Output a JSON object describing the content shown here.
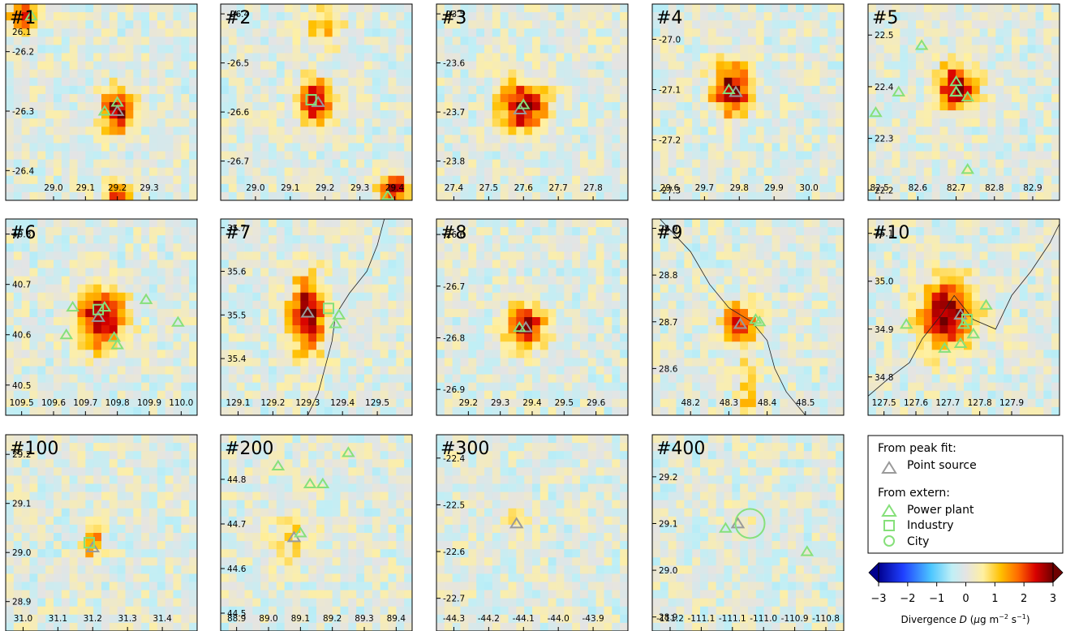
{
  "colors": {
    "point_source": "#9a9a9a",
    "power_plant": "#86e07a",
    "industry": "#86e07a",
    "city": "#86e07a",
    "background": "#e4e4e4",
    "coastline": "#222222"
  },
  "legend": {
    "peak_header": "From peak fit:",
    "point_source_label": "Point source",
    "extern_header": "From extern:",
    "power_plant_label": "Power plant",
    "industry_label": "Industry",
    "city_label": "City"
  },
  "colorbar": {
    "label": "Divergence D (μg m⁻² s⁻¹)",
    "label_prefix": "Divergence ",
    "label_symbol": "D",
    "label_units_open": " (",
    "label_mu": "μ",
    "label_g": "g m",
    "label_exp1": "−2",
    "label_s": " s",
    "label_exp2": "−1",
    "label_close": ")",
    "min": -3,
    "max": 3,
    "ticks": [
      "−3",
      "−2",
      "−1",
      "0",
      "1",
      "2",
      "3"
    ],
    "tick_values": [
      -3,
      -2,
      -1,
      0,
      1,
      2,
      3
    ]
  },
  "chart_data": [
    {
      "type": "heatmap",
      "title": "#1",
      "xlim": [
        28.85,
        29.45
      ],
      "ylim": [
        -26.45,
        -26.12
      ],
      "xticks": [
        "29.0",
        "29.1",
        "29.2",
        "29.3"
      ],
      "yticks": [
        "-26.2",
        "-26.3",
        "-26.4"
      ],
      "ytop": "26.1",
      "hotspots": [
        {
          "x": 29.2,
          "y": -26.3,
          "amp": 3.0,
          "sx": 0.035,
          "sy": 0.025
        },
        {
          "x": 28.9,
          "y": -26.14,
          "amp": 2.2,
          "sx": 0.03,
          "sy": 0.02
        },
        {
          "x": 29.2,
          "y": -26.45,
          "amp": 2.5,
          "sx": 0.03,
          "sy": 0.02
        }
      ],
      "markers": [
        {
          "kind": "point",
          "x": 29.2,
          "y": -26.3
        },
        {
          "kind": "plant",
          "x": 29.16,
          "y": -26.3
        },
        {
          "kind": "plant",
          "x": 29.2,
          "y": -26.285
        },
        {
          "kind": "plant",
          "x": 28.93,
          "y": -26.14
        }
      ]
    },
    {
      "type": "heatmap",
      "title": "#2",
      "xlim": [
        28.9,
        29.45
      ],
      "ylim": [
        -26.78,
        -26.38
      ],
      "xticks": [
        "29.0",
        "29.1",
        "29.2",
        "29.3",
        "29.4"
      ],
      "yticks": [
        "-26.4",
        "-26.5",
        "-26.6",
        "-26.7"
      ],
      "hotspots": [
        {
          "x": 29.17,
          "y": -26.58,
          "amp": 3.0,
          "sx": 0.035,
          "sy": 0.03
        },
        {
          "x": 29.4,
          "y": -26.76,
          "amp": 2.5,
          "sx": 0.03,
          "sy": 0.025
        },
        {
          "x": 29.2,
          "y": -26.42,
          "amp": 1.3,
          "sx": 0.04,
          "sy": 0.03
        }
      ],
      "markers": [
        {
          "kind": "point",
          "x": 29.18,
          "y": -26.58
        },
        {
          "kind": "industry",
          "x": 29.16,
          "y": -26.575
        },
        {
          "kind": "plant",
          "x": 29.38,
          "y": -26.77
        }
      ]
    },
    {
      "type": "heatmap",
      "title": "#3",
      "xlim": [
        27.35,
        27.9
      ],
      "ylim": [
        -23.88,
        -23.48
      ],
      "xticks": [
        "27.4",
        "27.5",
        "27.6",
        "27.7",
        "27.8"
      ],
      "yticks": [
        "-23.5",
        "-23.6",
        "-23.7",
        "-23.8"
      ],
      "hotspots": [
        {
          "x": 27.6,
          "y": -23.69,
          "amp": 3.0,
          "sx": 0.045,
          "sy": 0.035
        }
      ],
      "markers": [
        {
          "kind": "point",
          "x": 27.59,
          "y": -23.695
        },
        {
          "kind": "plant",
          "x": 27.6,
          "y": -23.685
        }
      ]
    },
    {
      "type": "heatmap",
      "title": "#4",
      "xlim": [
        29.55,
        30.1
      ],
      "ylim": [
        -27.32,
        -26.93
      ],
      "xticks": [
        "29.6",
        "29.7",
        "29.8",
        "29.9",
        "30.0"
      ],
      "yticks": [
        "-27.0",
        "-27.1",
        "-27.2",
        "-27.3"
      ],
      "hotspots": [
        {
          "x": 29.78,
          "y": -27.1,
          "amp": 3.0,
          "sx": 0.04,
          "sy": 0.035
        }
      ],
      "markers": [
        {
          "kind": "point",
          "x": 29.79,
          "y": -27.105
        },
        {
          "kind": "plant",
          "x": 29.77,
          "y": -27.1
        }
      ]
    },
    {
      "type": "heatmap",
      "title": "#5",
      "xlim": [
        82.47,
        82.97
      ],
      "ylim": [
        22.18,
        22.56
      ],
      "xticks": [
        "82.5",
        "82.6",
        "82.7",
        "82.8",
        "82.9"
      ],
      "yticks": [
        "22.5",
        "22.4",
        "22.3",
        "22.2"
      ],
      "hotspots": [
        {
          "x": 82.7,
          "y": 22.4,
          "amp": 3.0,
          "sx": 0.035,
          "sy": 0.03
        }
      ],
      "markers": [
        {
          "kind": "point",
          "x": 82.7,
          "y": 22.39
        },
        {
          "kind": "plant",
          "x": 82.61,
          "y": 22.48
        },
        {
          "kind": "plant",
          "x": 82.7,
          "y": 22.41
        },
        {
          "kind": "plant",
          "x": 82.7,
          "y": 22.39
        },
        {
          "kind": "plant",
          "x": 82.73,
          "y": 22.38
        },
        {
          "kind": "plant",
          "x": 82.55,
          "y": 22.39
        },
        {
          "kind": "plant",
          "x": 82.49,
          "y": 22.35
        },
        {
          "kind": "plant",
          "x": 82.73,
          "y": 22.24
        }
      ]
    },
    {
      "type": "heatmap",
      "title": "#6",
      "xlim": [
        109.45,
        110.05
      ],
      "ylim": [
        40.44,
        40.83
      ],
      "xticks": [
        "109.5",
        "109.6",
        "109.7",
        "109.8",
        "109.9",
        "110.0"
      ],
      "yticks": [
        "40.8",
        "40.7",
        "40.6",
        "40.5"
      ],
      "hotspots": [
        {
          "x": 109.75,
          "y": 40.63,
          "amp": 3.0,
          "sx": 0.05,
          "sy": 0.04
        }
      ],
      "markers": [
        {
          "kind": "point",
          "x": 109.74,
          "y": 40.635
        },
        {
          "kind": "industry",
          "x": 109.74,
          "y": 40.65
        },
        {
          "kind": "plant",
          "x": 109.76,
          "y": 40.655
        },
        {
          "kind": "plant",
          "x": 109.66,
          "y": 40.655
        },
        {
          "kind": "plant",
          "x": 109.64,
          "y": 40.6
        },
        {
          "kind": "plant",
          "x": 109.79,
          "y": 40.595
        },
        {
          "kind": "plant",
          "x": 109.8,
          "y": 40.58
        },
        {
          "kind": "plant",
          "x": 109.89,
          "y": 40.67
        },
        {
          "kind": "plant",
          "x": 109.99,
          "y": 40.625
        }
      ]
    },
    {
      "type": "heatmap",
      "title": "#7",
      "xlim": [
        129.05,
        129.6
      ],
      "ylim": [
        35.27,
        35.72
      ],
      "xticks": [
        "129.1",
        "129.2",
        "129.3",
        "129.4",
        "129.5"
      ],
      "yticks": [
        "35.7",
        "35.6",
        "35.5",
        "35.4"
      ],
      "hotspots": [
        {
          "x": 129.3,
          "y": 35.5,
          "amp": 3.0,
          "sx": 0.035,
          "sy": 0.06
        }
      ],
      "markers": [
        {
          "kind": "point",
          "x": 129.3,
          "y": 35.505
        },
        {
          "kind": "industry",
          "x": 129.36,
          "y": 35.515
        },
        {
          "kind": "plant",
          "x": 129.38,
          "y": 35.48
        },
        {
          "kind": "plant",
          "x": 129.39,
          "y": 35.5
        }
      ],
      "coast": [
        [
          129.52,
          35.72
        ],
        [
          129.5,
          35.66
        ],
        [
          129.47,
          35.6
        ],
        [
          129.42,
          35.55
        ],
        [
          129.38,
          35.5
        ],
        [
          129.37,
          35.44
        ],
        [
          129.35,
          35.38
        ],
        [
          129.33,
          35.32
        ],
        [
          129.3,
          35.27
        ]
      ]
    },
    {
      "type": "heatmap",
      "title": "#8",
      "xlim": [
        29.1,
        29.7
      ],
      "ylim": [
        -26.95,
        -26.57
      ],
      "xticks": [
        "29.2",
        "29.3",
        "29.4",
        "29.5",
        "29.6"
      ],
      "yticks": [
        "-26.6",
        "-26.7",
        "-26.8",
        "-26.9"
      ],
      "hotspots": [
        {
          "x": 29.38,
          "y": -26.78,
          "amp": 3.0,
          "sx": 0.04,
          "sy": 0.03
        }
      ],
      "markers": [
        {
          "kind": "point",
          "x": 29.38,
          "y": -26.78
        },
        {
          "kind": "plant",
          "x": 29.36,
          "y": -26.78
        }
      ]
    },
    {
      "type": "heatmap",
      "title": "#9",
      "xlim": [
        48.1,
        48.6
      ],
      "ylim": [
        28.5,
        28.92
      ],
      "xticks": [
        "48.2",
        "48.3",
        "48.4",
        "48.5"
      ],
      "yticks": [
        "28.9",
        "28.8",
        "28.7",
        "28.6"
      ],
      "hotspots": [
        {
          "x": 48.33,
          "y": 28.7,
          "amp": 2.4,
          "sx": 0.03,
          "sy": 0.03
        },
        {
          "x": 48.35,
          "y": 28.55,
          "amp": 1.2,
          "sx": 0.02,
          "sy": 0.05
        }
      ],
      "markers": [
        {
          "kind": "point",
          "x": 48.33,
          "y": 28.695
        },
        {
          "kind": "plant",
          "x": 48.37,
          "y": 28.705
        },
        {
          "kind": "plant",
          "x": 48.38,
          "y": 28.7
        }
      ],
      "coast": [
        [
          48.12,
          28.92
        ],
        [
          48.2,
          28.85
        ],
        [
          48.25,
          28.78
        ],
        [
          48.3,
          28.73
        ],
        [
          48.36,
          28.7
        ],
        [
          48.4,
          28.66
        ],
        [
          48.42,
          28.6
        ],
        [
          48.45,
          28.55
        ],
        [
          48.5,
          28.5
        ]
      ]
    },
    {
      "type": "heatmap",
      "title": "#10",
      "xlim": [
        127.45,
        128.05
      ],
      "ylim": [
        34.72,
        35.13
      ],
      "xticks": [
        "127.5",
        "127.6",
        "127.7",
        "127.8",
        "127.9"
      ],
      "yticks": [
        "35.1",
        "35.0",
        "34.9",
        "34.8"
      ],
      "hotspots": [
        {
          "x": 127.7,
          "y": 34.93,
          "amp": 3.0,
          "sx": 0.06,
          "sy": 0.05
        }
      ],
      "markers": [
        {
          "kind": "point",
          "x": 127.74,
          "y": 34.93
        },
        {
          "kind": "industry",
          "x": 127.76,
          "y": 34.92
        },
        {
          "kind": "plant",
          "x": 127.75,
          "y": 34.91
        },
        {
          "kind": "plant",
          "x": 127.78,
          "y": 34.89
        },
        {
          "kind": "plant",
          "x": 127.82,
          "y": 34.95
        },
        {
          "kind": "plant",
          "x": 127.57,
          "y": 34.91
        },
        {
          "kind": "plant",
          "x": 127.69,
          "y": 34.86
        },
        {
          "kind": "plant",
          "x": 127.74,
          "y": 34.87
        }
      ],
      "coast": [
        [
          127.45,
          34.76
        ],
        [
          127.52,
          34.8
        ],
        [
          127.58,
          34.83
        ],
        [
          127.62,
          34.88
        ],
        [
          127.68,
          34.93
        ],
        [
          127.72,
          34.97
        ],
        [
          127.78,
          34.92
        ],
        [
          127.85,
          34.9
        ],
        [
          127.9,
          34.97
        ],
        [
          127.96,
          35.02
        ],
        [
          128.02,
          35.08
        ],
        [
          128.05,
          35.12
        ]
      ]
    },
    {
      "type": "heatmap",
      "title": "#100",
      "xlim": [
        30.95,
        31.5
      ],
      "ylim": [
        28.84,
        29.24
      ],
      "xticks": [
        "31.0",
        "31.1",
        "31.2",
        "31.3",
        "31.4"
      ],
      "yticks": [
        "29.2",
        "29.1",
        "29.0",
        "28.9"
      ],
      "hotspots": [
        {
          "x": 31.2,
          "y": 29.02,
          "amp": 2.0,
          "sx": 0.02,
          "sy": 0.02
        }
      ],
      "markers": [
        {
          "kind": "point",
          "x": 31.2,
          "y": 29.01
        },
        {
          "kind": "industry",
          "x": 31.19,
          "y": 29.02
        }
      ]
    },
    {
      "type": "heatmap",
      "title": "#200",
      "xlim": [
        88.85,
        89.45
      ],
      "ylim": [
        44.46,
        44.9
      ],
      "xticks": [
        "88.9",
        "89.0",
        "89.1",
        "89.2",
        "89.3",
        "89.4"
      ],
      "yticks": [
        "44.8",
        "44.7",
        "44.6",
        "44.5"
      ],
      "hotspots": [
        {
          "x": 89.07,
          "y": 44.67,
          "amp": 0.8,
          "sx": 0.05,
          "sy": 0.04
        }
      ],
      "markers": [
        {
          "kind": "point",
          "x": 89.08,
          "y": 44.67
        },
        {
          "kind": "plant",
          "x": 89.1,
          "y": 44.68
        },
        {
          "kind": "plant",
          "x": 89.03,
          "y": 44.83
        },
        {
          "kind": "plant",
          "x": 89.13,
          "y": 44.79
        },
        {
          "kind": "plant",
          "x": 89.17,
          "y": 44.79
        },
        {
          "kind": "plant",
          "x": 89.25,
          "y": 44.86
        }
      ]
    },
    {
      "type": "heatmap",
      "title": "#300",
      "xlim": [
        -44.35,
        -43.8
      ],
      "ylim": [
        -22.77,
        -22.35
      ],
      "xticks": [
        "-44.3",
        "-44.2",
        "-44.1",
        "-44.0",
        "-43.9"
      ],
      "yticks": [
        "-22.4",
        "-22.5",
        "-22.6",
        "-22.7"
      ],
      "hotspots": [
        {
          "x": -44.12,
          "y": -22.54,
          "amp": 0.5,
          "sx": 0.03,
          "sy": 0.03
        }
      ],
      "markers": [
        {
          "kind": "point",
          "x": -44.12,
          "y": -22.54
        }
      ]
    },
    {
      "type": "heatmap",
      "title": "#400",
      "xlim": [
        -111.22,
        -110.75
      ],
      "ylim": [
        28.87,
        29.29
      ],
      "xticks": [
        "-111.2",
        "-111.1",
        "-111.1",
        "-111.0",
        "-110.9",
        "-110.8"
      ],
      "yticks": [
        "29.2",
        "29.1",
        "29.0",
        "28.9"
      ],
      "hotspots": [
        {
          "x": -111.0,
          "y": 29.1,
          "amp": 0.3,
          "sx": 0.03,
          "sy": 0.03
        }
      ],
      "markers": [
        {
          "kind": "point",
          "x": -111.01,
          "y": 29.1
        },
        {
          "kind": "plant",
          "x": -111.04,
          "y": 29.09
        },
        {
          "kind": "plant",
          "x": -110.84,
          "y": 29.04
        },
        {
          "kind": "city",
          "x": -110.98,
          "y": 29.1
        }
      ]
    }
  ]
}
